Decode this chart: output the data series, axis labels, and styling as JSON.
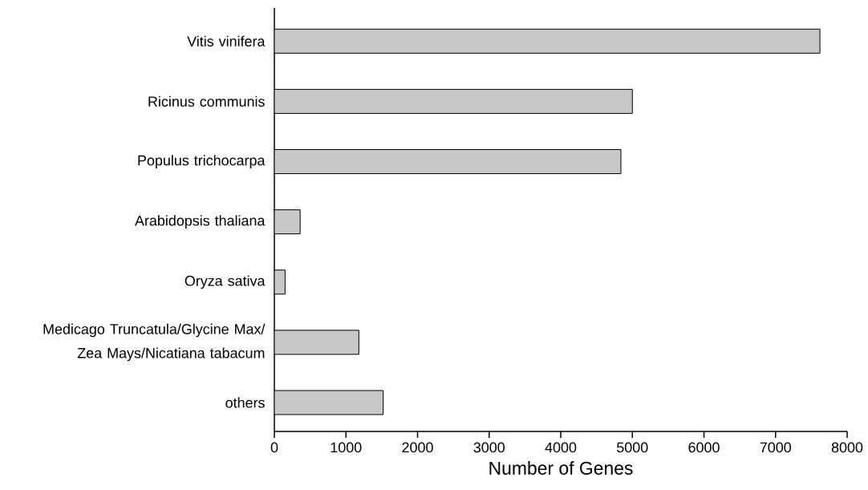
{
  "chart_data": {
    "type": "bar",
    "orientation": "horizontal",
    "xlabel": "Number of Genes",
    "categories": [
      "Vitis vinifera",
      "Ricinus communis",
      "Populus trichocarpa",
      "Arabidopsis thaliana",
      "Oryza sativa",
      "Medicago Truncatula/Glycine Max/ Zea Mays/Nicatiana tabacum",
      "others"
    ],
    "values": [
      7620,
      5000,
      4840,
      360,
      150,
      1180,
      1520
    ],
    "color": "#c8c8c8",
    "xlim": [
      0,
      8000
    ],
    "xticks": [
      0,
      1000,
      2000,
      3000,
      4000,
      5000,
      6000,
      7000,
      8000
    ],
    "grid": false
  }
}
